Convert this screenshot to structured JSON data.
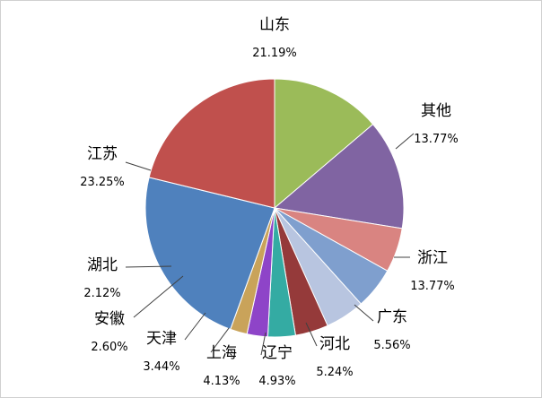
{
  "chart_data": {
    "type": "pie",
    "start_angle_deg": 0,
    "direction": "clockwise",
    "slices": [
      {
        "name": "其他",
        "value": 13.77,
        "label": "13.77%",
        "color": "#9BBB59"
      },
      {
        "name": "浙江",
        "value": 13.77,
        "label": "13.77%",
        "color": "#8064A2"
      },
      {
        "name": "广东",
        "value": 5.56,
        "label": "5.56%",
        "color": "#D98481"
      },
      {
        "name": "河北",
        "value": 5.24,
        "label": "5.24%",
        "color": "#7F9FCE"
      },
      {
        "name": "辽宁",
        "value": 4.93,
        "label": "4.93%",
        "color": "#B8C5E0"
      },
      {
        "name": "上海",
        "value": 4.13,
        "label": "4.13%",
        "color": "#953A3A"
      },
      {
        "name": "天津",
        "value": 3.44,
        "label": "3.44%",
        "color": "#34ABA3"
      },
      {
        "name": "安徽",
        "value": 2.6,
        "label": "2.60%",
        "color": "#8E44C8"
      },
      {
        "name": "湖北",
        "value": 2.12,
        "label": "2.12%",
        "color": "#C9A35A"
      },
      {
        "name": "江苏",
        "value": 23.25,
        "label": "23.25%",
        "color": "#4F81BD"
      },
      {
        "name": "山东",
        "value": 21.19,
        "label": "21.19%",
        "color": "#C0504D"
      }
    ]
  }
}
